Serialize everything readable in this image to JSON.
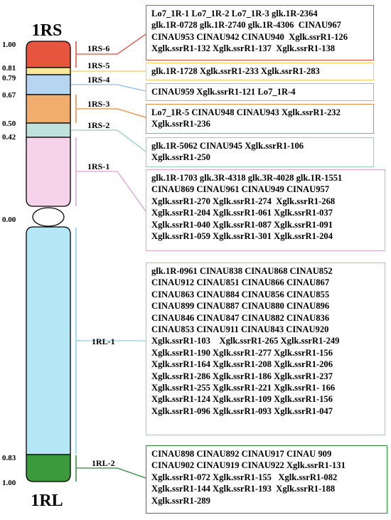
{
  "titles": {
    "short_arm": "1RS",
    "long_arm": "1RL"
  },
  "scale": {
    "s_100": "1.00",
    "s_081": "0.81",
    "s_079": "0.79",
    "s_067": "0.67",
    "s_050": "0.50",
    "s_042": "0.42",
    "s_000": "0.00",
    "l_083": "0.83",
    "l_100": "1.00"
  },
  "segments": [
    {
      "id": "1RS-6",
      "label": "1RS-6",
      "color": "#e8553e",
      "markers": [
        "Lo7_1R-1 Lo7_1R-2 Lo7_1R-3 glk.1R-2364",
        "glk.1R-0728 glk.1R-2740 glk.1R-4306  CINAU967",
        "CINAU953 CINAU942 CINAU940  Xglk.ssrR1-126",
        "Xglk.ssrR1-132 Xglk.ssrR1-137  Xglk.ssrR1-138"
      ]
    },
    {
      "id": "1RS-5",
      "label": "1RS-5",
      "color": "#fbe89a",
      "markers": [
        "glk.1R-1728 Xglk.ssrR1-233 Xglk.ssrR1-283"
      ]
    },
    {
      "id": "1RS-4",
      "label": "1RS-4",
      "color": "#b5d5f3",
      "markers": [
        "CINAU959 Xglk.ssrR1-121 Lo7_1R-4"
      ]
    },
    {
      "id": "1RS-3",
      "label": "1RS-3",
      "color": "#f1ad6d",
      "markers": [
        "Lo7_1R-5 CINAU948 CINAU943 Xglk.ssrR1-232",
        "Xglk.ssrR1-236"
      ]
    },
    {
      "id": "1RS-2",
      "label": "1RS-2",
      "color": "#bfe3dc",
      "markers": [
        "glk.1R-5062 CINAU945 Xglk.ssrR1-106",
        "Xglk.ssrR1-250"
      ]
    },
    {
      "id": "1RS-1",
      "label": "1RS-1",
      "color": "#f6d3ea",
      "markers": [
        "glk.1R-1703 glk.3R-4318 glk.3R-4028 glk.1R-1551",
        "CINAU869 CINAU961 CINAU949 CINAU957",
        "Xglk.ssrR1-270 Xglk.ssrR1-274  Xglk.ssrR1-268",
        "Xglk.ssrR1-204 Xglk.ssrR1-061 Xglk.ssrR1-037",
        "Xglk.ssrR1-040 Xglk.ssrR1-087 Xglk.ssrR1-091",
        "Xglk.ssrR1-059 Xglk.ssrR1-301 Xglk.ssrR1-204"
      ]
    },
    {
      "id": "1RL-1",
      "label": "1RL-1",
      "color": "#b5e7f7",
      "markers": [
        "glk.1R-0961 CINAU838 CINAU868 CINAU852",
        "CINAU912 CINAU851 CINAU866 CINAU867",
        "CINAU863 CINAU884 CINAU856 CINAU855",
        "CINAU899 CINAU887 CINAU880 CINAU896",
        "CINAU846 CINAU847 CINAU882 CINAU836",
        "CINAU853 CINAU911 CINAU843 CINAU920",
        "Xglk.ssrR1-103    Xglk.ssrR1-265 Xglk.ssrR1-249",
        "Xglk.ssrR1-190 Xglk.ssrR1-277 Xglk.ssrR1-156",
        "Xglk.ssrR1-164 Xglk.ssrR1-208 Xglk.ssrR1-206",
        "Xglk.ssrR1-286 Xglk.ssrR1-186 Xglk.ssrR1-237",
        "Xglk.ssrR1-255 Xglk.ssrR1-221 Xglk.ssrR1- 166",
        "Xglk.ssrR1-124 Xglk.ssrR1-109 Xglk.ssrR1-156",
        "Xglk.ssrR1-096 Xglk.ssrR1-093 Xglk.ssrR1-047"
      ]
    },
    {
      "id": "1RL-2",
      "label": "1RL-2",
      "color": "#3a9a3c",
      "markers": [
        "CINAU898 CINAU892 CINAU917 CINAU 909",
        "CINAU902 CINAU919 CINAU922 Xglk.ssrR1-131",
        "Xglk.ssrR1-072 Xglk.ssrR1-155   Xglk.ssrR1-082",
        "Xglk.ssrR1-144 Xglk.ssrR1-193  Xglk.ssrR1-188",
        "Xglk.ssrR1-289"
      ]
    }
  ]
}
